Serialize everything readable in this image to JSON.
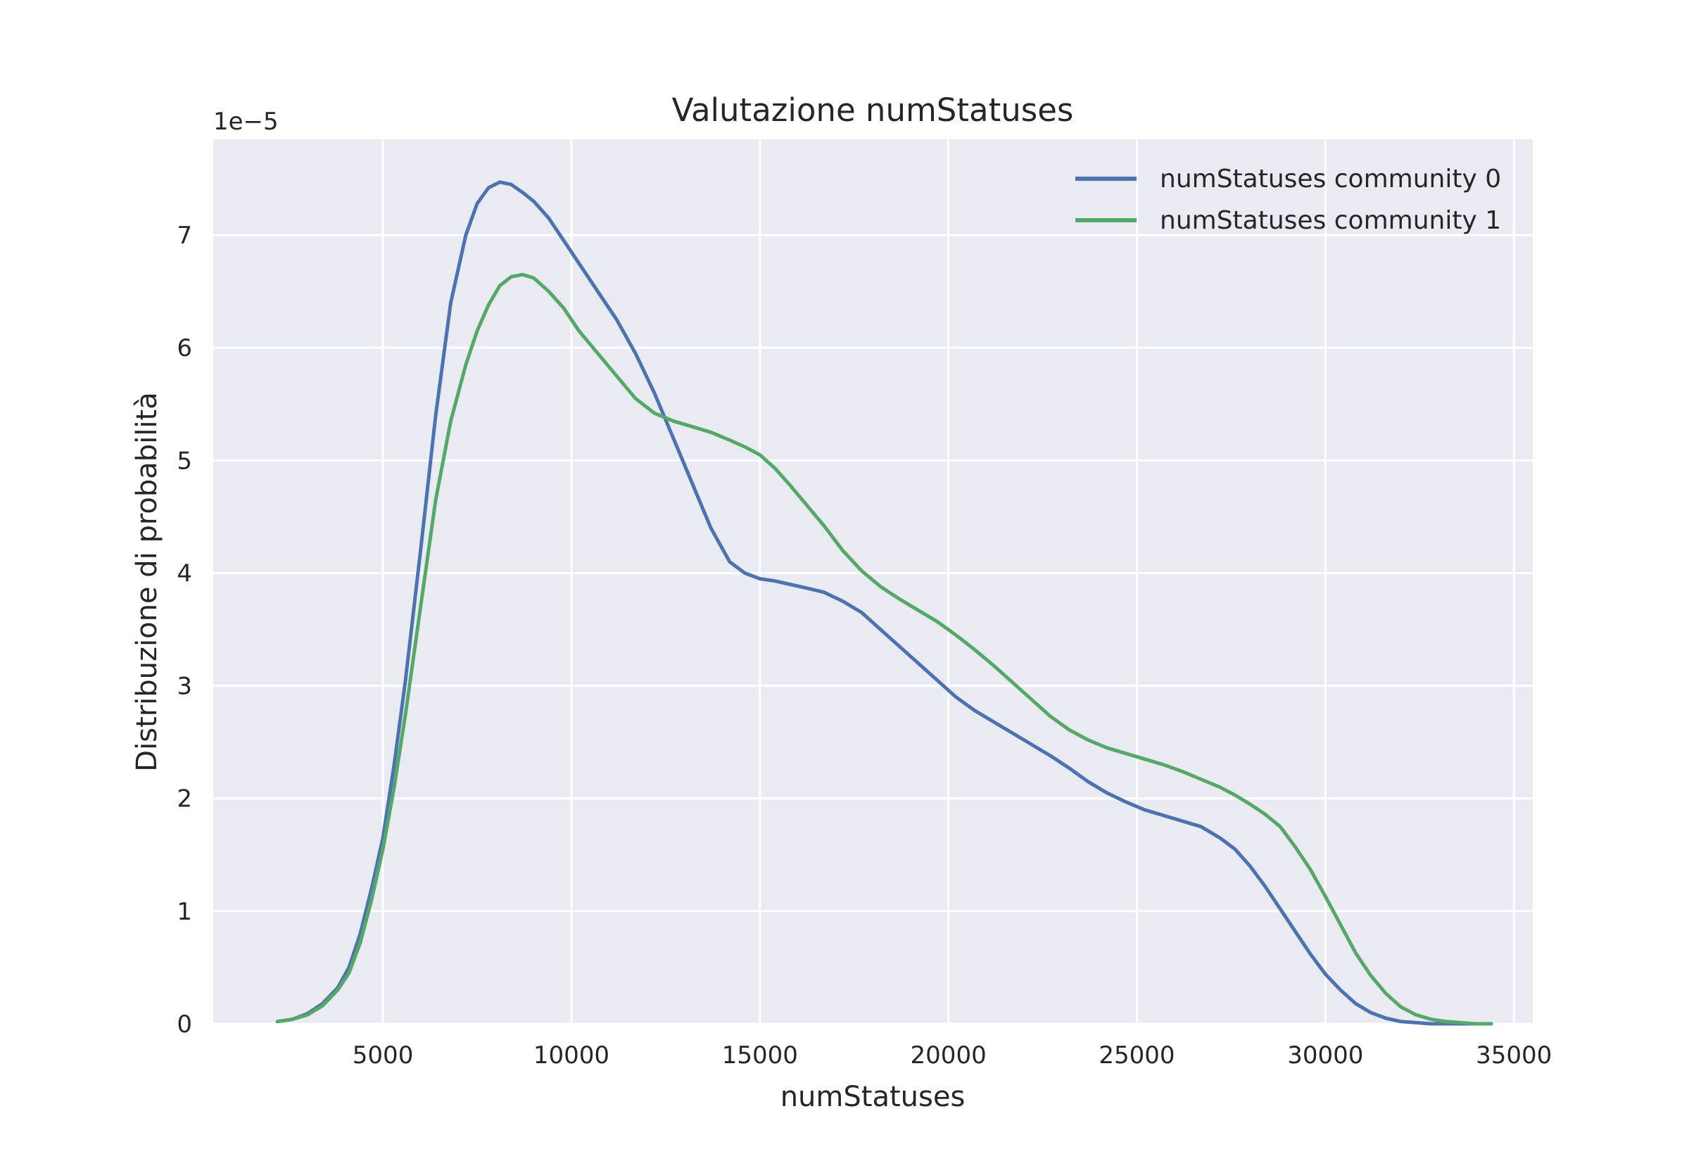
{
  "chart_data": {
    "type": "line",
    "title": "Valutazione numStatuses",
    "xlabel": "numStatuses",
    "ylabel": "Distribuzione di probabilità",
    "y_scale_label": "1e−5",
    "xlim": [
      500,
      35500
    ],
    "ylim": [
      0,
      7.85
    ],
    "x_ticks": [
      5000,
      10000,
      15000,
      20000,
      25000,
      30000,
      35000
    ],
    "x_tick_labels": [
      "5000",
      "10000",
      "15000",
      "20000",
      "25000",
      "30000",
      "35000"
    ],
    "y_ticks": [
      0,
      1,
      2,
      3,
      4,
      5,
      6,
      7
    ],
    "y_tick_labels": [
      "0",
      "1",
      "2",
      "3",
      "4",
      "5",
      "6",
      "7"
    ],
    "grid": true,
    "legend_position": "top-right",
    "colors": {
      "background": "#eaeaf2",
      "grid": "#ffffff",
      "community0": "#4c72b0",
      "community1": "#55a868"
    },
    "series": [
      {
        "name": "numStatuses community 0",
        "color": "#4c72b0",
        "x": [
          2200,
          2600,
          3000,
          3400,
          3800,
          4100,
          4400,
          4700,
          5000,
          5300,
          5600,
          6000,
          6400,
          6800,
          7200,
          7500,
          7800,
          8100,
          8400,
          8700,
          9000,
          9400,
          9800,
          10200,
          10700,
          11200,
          11700,
          12200,
          12700,
          13200,
          13700,
          14200,
          14600,
          15000,
          15400,
          15800,
          16200,
          16700,
          17200,
          17700,
          18200,
          18700,
          19200,
          19700,
          20200,
          20700,
          21200,
          21700,
          22200,
          22700,
          23200,
          23700,
          24200,
          24700,
          25200,
          25700,
          26200,
          26700,
          27200,
          27600,
          28000,
          28400,
          28800,
          29200,
          29600,
          30000,
          30400,
          30800,
          31200,
          31600,
          32000,
          32400,
          32800,
          33200,
          33600,
          34000,
          34400
        ],
        "y": [
          0.02,
          0.04,
          0.09,
          0.18,
          0.32,
          0.5,
          0.8,
          1.2,
          1.65,
          2.3,
          3.05,
          4.2,
          5.4,
          6.4,
          7.0,
          7.28,
          7.42,
          7.47,
          7.45,
          7.38,
          7.3,
          7.15,
          6.95,
          6.75,
          6.5,
          6.25,
          5.95,
          5.6,
          5.2,
          4.8,
          4.4,
          4.1,
          4.0,
          3.95,
          3.93,
          3.9,
          3.87,
          3.83,
          3.75,
          3.65,
          3.5,
          3.35,
          3.2,
          3.05,
          2.9,
          2.78,
          2.68,
          2.58,
          2.48,
          2.38,
          2.27,
          2.15,
          2.05,
          1.97,
          1.9,
          1.85,
          1.8,
          1.75,
          1.65,
          1.55,
          1.4,
          1.22,
          1.02,
          0.82,
          0.62,
          0.44,
          0.3,
          0.18,
          0.1,
          0.05,
          0.02,
          0.01,
          0.0,
          0.0,
          0.0,
          0.0,
          0.0
        ]
      },
      {
        "name": "numStatuses community 1",
        "color": "#55a868",
        "x": [
          2200,
          2600,
          3000,
          3400,
          3800,
          4100,
          4400,
          4700,
          5000,
          5300,
          5600,
          6000,
          6400,
          6800,
          7200,
          7500,
          7800,
          8100,
          8400,
          8700,
          9000,
          9400,
          9800,
          10200,
          10700,
          11200,
          11700,
          12200,
          12700,
          13200,
          13700,
          14200,
          14600,
          15000,
          15400,
          15800,
          16200,
          16700,
          17200,
          17700,
          18200,
          18700,
          19200,
          19700,
          20200,
          20700,
          21200,
          21700,
          22200,
          22700,
          23200,
          23700,
          24200,
          24700,
          25200,
          25700,
          26200,
          26700,
          27200,
          27600,
          28000,
          28400,
          28800,
          29200,
          29600,
          30000,
          30400,
          30800,
          31200,
          31600,
          32000,
          32400,
          32800,
          33200,
          33600,
          34000,
          34400
        ],
        "y": [
          0.02,
          0.04,
          0.08,
          0.16,
          0.3,
          0.45,
          0.72,
          1.1,
          1.55,
          2.1,
          2.75,
          3.7,
          4.65,
          5.35,
          5.85,
          6.15,
          6.38,
          6.55,
          6.63,
          6.65,
          6.62,
          6.5,
          6.35,
          6.15,
          5.95,
          5.75,
          5.55,
          5.42,
          5.35,
          5.3,
          5.25,
          5.18,
          5.12,
          5.05,
          4.93,
          4.78,
          4.62,
          4.42,
          4.2,
          4.02,
          3.88,
          3.77,
          3.67,
          3.57,
          3.45,
          3.32,
          3.18,
          3.03,
          2.88,
          2.73,
          2.61,
          2.52,
          2.45,
          2.4,
          2.35,
          2.3,
          2.24,
          2.17,
          2.1,
          2.03,
          1.95,
          1.86,
          1.75,
          1.57,
          1.37,
          1.13,
          0.88,
          0.63,
          0.43,
          0.27,
          0.15,
          0.08,
          0.04,
          0.02,
          0.01,
          0.0,
          0.0
        ]
      }
    ]
  }
}
